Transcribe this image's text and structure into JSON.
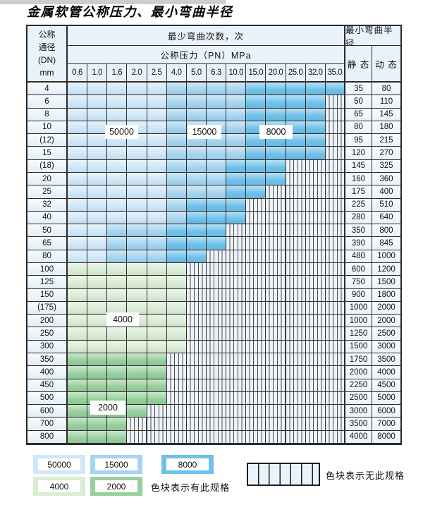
{
  "title": "金属软管公称压力、最小弯曲半径",
  "colors": {
    "50000": "#cfe7f8",
    "15000": "#a5d4f0",
    "8000": "#6fc1ea",
    "4000": "#d9ecd4",
    "2000": "#97cf9d",
    "hatch_bg": "#eef3f9",
    "border": "#2b2b2b"
  },
  "table": {
    "header": {
      "dn_lines": [
        "公称",
        "通径",
        "(DN)",
        "mm"
      ],
      "bend_cycles": "最少弯曲次数，次",
      "pressure": "公称压力（PN）MPa",
      "pressure_values": [
        "0.6",
        "1.0",
        "1.6",
        "2.0",
        "2.5",
        "4.0",
        "5.0",
        "6.3",
        "10.0",
        "15.0",
        "20.0",
        "25.0",
        "32.0",
        "35.0"
      ],
      "radius": "最小弯曲半径",
      "static": "静 态",
      "dynamic": "动 态"
    },
    "rows": [
      {
        "dn": "4",
        "zones": [
          {
            "cycles": "50000",
            "span": 5
          },
          {
            "cycles": "15000",
            "span": 4
          },
          {
            "cycles": "8000",
            "span": 5
          }
        ],
        "static": "35",
        "dynamic": "80"
      },
      {
        "dn": "6",
        "zones": [
          {
            "cycles": "50000",
            "span": 5
          },
          {
            "cycles": "15000",
            "span": 4
          },
          {
            "cycles": "8000",
            "span": 4
          }
        ],
        "static": "50",
        "dynamic": "110"
      },
      {
        "dn": "8",
        "zones": [
          {
            "cycles": "50000",
            "span": 5
          },
          {
            "cycles": "15000",
            "span": 4
          },
          {
            "cycles": "8000",
            "span": 4
          }
        ],
        "static": "65",
        "dynamic": "145"
      },
      {
        "dn": "10",
        "zones": [
          {
            "cycles": "50000",
            "span": 5
          },
          {
            "cycles": "15000",
            "span": 4
          },
          {
            "cycles": "8000",
            "span": 4
          }
        ],
        "static": "80",
        "dynamic": "180"
      },
      {
        "dn": "(12)",
        "zones": [
          {
            "cycles": "50000",
            "span": 5
          },
          {
            "cycles": "15000",
            "span": 4
          },
          {
            "cycles": "8000",
            "span": 4
          }
        ],
        "static": "95",
        "dynamic": "215"
      },
      {
        "dn": "15",
        "zones": [
          {
            "cycles": "50000",
            "span": 5
          },
          {
            "cycles": "15000",
            "span": 4
          },
          {
            "cycles": "8000",
            "span": 4
          }
        ],
        "static": "120",
        "dynamic": "270"
      },
      {
        "dn": "(18)",
        "zones": [
          {
            "cycles": "50000",
            "span": 5
          },
          {
            "cycles": "15000",
            "span": 3
          },
          {
            "cycles": "8000",
            "span": 3
          }
        ],
        "static": "145",
        "dynamic": "325"
      },
      {
        "dn": "20",
        "zones": [
          {
            "cycles": "50000",
            "span": 5
          },
          {
            "cycles": "15000",
            "span": 3
          },
          {
            "cycles": "8000",
            "span": 3
          }
        ],
        "static": "160",
        "dynamic": "360"
      },
      {
        "dn": "25",
        "zones": [
          {
            "cycles": "50000",
            "span": 5
          },
          {
            "cycles": "15000",
            "span": 3
          },
          {
            "cycles": "8000",
            "span": 2
          }
        ],
        "static": "175",
        "dynamic": "400"
      },
      {
        "dn": "32",
        "zones": [
          {
            "cycles": "50000",
            "span": 5
          },
          {
            "cycles": "15000",
            "span": 1
          },
          {
            "cycles": "8000",
            "span": 3
          }
        ],
        "static": "225",
        "dynamic": "510"
      },
      {
        "dn": "40",
        "zones": [
          {
            "cycles": "50000",
            "span": 5
          },
          {
            "cycles": "15000",
            "span": 1
          },
          {
            "cycles": "8000",
            "span": 3
          }
        ],
        "static": "280",
        "dynamic": "640"
      },
      {
        "dn": "50",
        "zones": [
          {
            "cycles": "50000",
            "span": 2
          },
          {
            "cycles": "15000",
            "span": 3
          },
          {
            "cycles": "8000",
            "span": 3
          }
        ],
        "static": "350",
        "dynamic": "800"
      },
      {
        "dn": "65",
        "zones": [
          {
            "cycles": "50000",
            "span": 2
          },
          {
            "cycles": "15000",
            "span": 3
          },
          {
            "cycles": "8000",
            "span": 3
          }
        ],
        "static": "390",
        "dynamic": "845"
      },
      {
        "dn": "80",
        "zones": [
          {
            "cycles": "50000",
            "span": 2
          },
          {
            "cycles": "15000",
            "span": 3
          },
          {
            "cycles": "8000",
            "span": 2
          }
        ],
        "static": "480",
        "dynamic": "1000"
      },
      {
        "dn": "100",
        "zones": [
          {
            "cycles": "4000",
            "span": 6
          }
        ],
        "static": "600",
        "dynamic": "1200"
      },
      {
        "dn": "125",
        "zones": [
          {
            "cycles": "4000",
            "span": 6
          }
        ],
        "static": "750",
        "dynamic": "1500"
      },
      {
        "dn": "150",
        "zones": [
          {
            "cycles": "4000",
            "span": 6
          }
        ],
        "static": "900",
        "dynamic": "1800"
      },
      {
        "dn": "(175)",
        "zones": [
          {
            "cycles": "4000",
            "span": 6
          }
        ],
        "static": "1000",
        "dynamic": "2000"
      },
      {
        "dn": "200",
        "zones": [
          {
            "cycles": "4000",
            "span": 6
          }
        ],
        "static": "1000",
        "dynamic": "2000"
      },
      {
        "dn": "250",
        "zones": [
          {
            "cycles": "4000",
            "span": 6
          }
        ],
        "static": "1250",
        "dynamic": "2500"
      },
      {
        "dn": "300",
        "zones": [
          {
            "cycles": "4000",
            "span": 6
          }
        ],
        "static": "1500",
        "dynamic": "3000"
      },
      {
        "dn": "350",
        "zones": [
          {
            "cycles": "2000",
            "span": 5
          }
        ],
        "static": "1750",
        "dynamic": "3500"
      },
      {
        "dn": "400",
        "zones": [
          {
            "cycles": "2000",
            "span": 5
          }
        ],
        "static": "2000",
        "dynamic": "4000"
      },
      {
        "dn": "450",
        "zones": [
          {
            "cycles": "2000",
            "span": 5
          }
        ],
        "static": "2250",
        "dynamic": "4500"
      },
      {
        "dn": "500",
        "zones": [
          {
            "cycles": "2000",
            "span": 5
          }
        ],
        "static": "2500",
        "dynamic": "5000"
      },
      {
        "dn": "600",
        "zones": [
          {
            "cycles": "2000",
            "span": 4
          }
        ],
        "static": "3000",
        "dynamic": "6000"
      },
      {
        "dn": "700",
        "zones": [
          {
            "cycles": "2000",
            "span": 3
          }
        ],
        "static": "3500",
        "dynamic": "7000"
      },
      {
        "dn": "800",
        "zones": [
          {
            "cycles": "2000",
            "span": 3
          }
        ],
        "static": "4000",
        "dynamic": "8000"
      }
    ]
  },
  "zone_labels": [
    {
      "text": "50000"
    },
    {
      "text": "15000"
    },
    {
      "text": "8000"
    },
    {
      "text": "4000"
    },
    {
      "text": "2000"
    }
  ],
  "legend": {
    "items": [
      {
        "value": "50000",
        "color_key": "50000"
      },
      {
        "value": "15000",
        "color_key": "15000"
      },
      {
        "value": "8000",
        "color_key": "8000"
      },
      {
        "value": "4000",
        "color_key": "4000"
      },
      {
        "value": "2000",
        "color_key": "2000"
      }
    ],
    "available_label": "色块表示有此规格",
    "unavailable_label": "色块表示无此规格"
  }
}
